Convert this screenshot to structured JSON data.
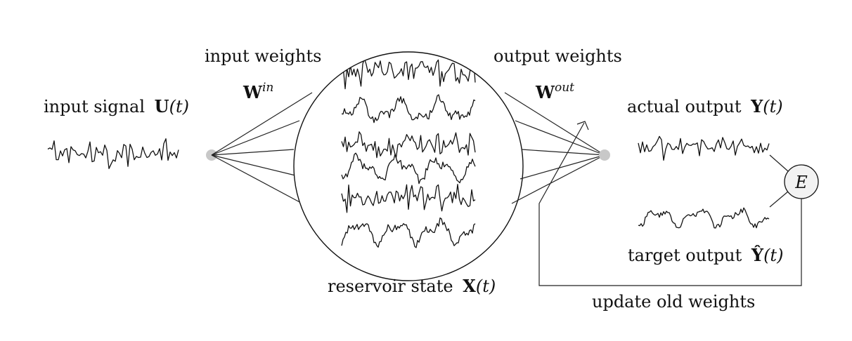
{
  "labels": {
    "input_signal": "input signal",
    "input_signal_var": "U",
    "input_signal_arg": "(t)",
    "input_weights": "input weights",
    "w_in_base": "W",
    "w_in_sup": "in",
    "output_weights": "output weights",
    "w_out_base": "W",
    "w_out_sup": "out",
    "actual_output": "actual output",
    "actual_output_var": "Y",
    "actual_output_arg": "(t)",
    "target_output": "target output",
    "target_output_var": "Ŷ",
    "target_output_arg": "(t)",
    "reservoir_state": "reservoir state",
    "reservoir_state_var": "X",
    "reservoir_state_arg": "(t)",
    "error_node": "E",
    "update": "update old weights"
  },
  "colors": {
    "node": "#c8c8c8",
    "error_fill": "#f2f2f2",
    "ink": "#111111"
  }
}
